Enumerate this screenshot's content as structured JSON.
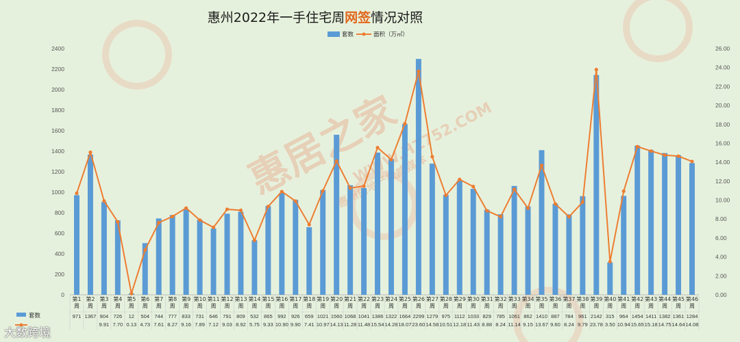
{
  "title": {
    "prefix": "惠州2022年一手住宅周",
    "highlight": "网签",
    "suffix": "情况对照"
  },
  "legend": {
    "bar_label": "套数",
    "line_label": "面积（万㎡）"
  },
  "watermark": {
    "text1": "惠居之家",
    "text2": "WWW.HZ752.COM",
    "text3": "惠州房地产权威媒体"
  },
  "footer": {
    "logo_text": "大数跨境"
  },
  "colors": {
    "bar": "#5b9bd5",
    "line": "#ed7d31",
    "background": "#e6f1dd",
    "title_highlight": "#e0671d"
  },
  "chart_data": {
    "type": "bar+line",
    "categories": [
      "第1周",
      "第2周",
      "第3周",
      "第4周",
      "第5周",
      "第6周",
      "第7周",
      "第8周",
      "第9周",
      "第10周",
      "第11周",
      "第12周",
      "第13周",
      "第14周",
      "第15周",
      "第16周",
      "第17周",
      "第18周",
      "第19周",
      "第20周",
      "第21周",
      "第22周",
      "第23周",
      "第24周",
      "第25周",
      "第26周",
      "第27周",
      "第28周",
      "第29周",
      "第30周",
      "第31周",
      "第32周",
      "第33周",
      "第34周",
      "第35周",
      "第36周",
      "第37周",
      "第38周",
      "第39周",
      "第40周",
      "第41周",
      "第42周",
      "第43周",
      "第44周",
      "第45周",
      "第46周"
    ],
    "series": [
      {
        "name": "套数",
        "type": "bar",
        "axis": "left",
        "values": [
          971,
          1367,
          904,
          726,
          12,
          504,
          744,
          777,
          833,
          731,
          646,
          791,
          809,
          532,
          865,
          992,
          926,
          659,
          1021,
          1560,
          1068,
          1041,
          1386,
          1322,
          1664,
          2299,
          1279,
          975,
          1112,
          1033,
          829,
          785,
          1061,
          862,
          1410,
          887,
          784,
          961,
          2142,
          315,
          964,
          1454,
          1411,
          1382,
          1361,
          1284
        ]
      },
      {
        "name": "面积（万㎡）",
        "type": "line",
        "axis": "right",
        "values": [
          10.72,
          15.05,
          9.91,
          7.7,
          0.13,
          4.73,
          7.61,
          8.27,
          9.16,
          7.89,
          7.12,
          9.03,
          8.92,
          5.75,
          9.33,
          10.9,
          9.9,
          7.41,
          10.97,
          14.13,
          11.28,
          11.48,
          15.54,
          14.28,
          18.07,
          23.6,
          14.58,
          10.51,
          12.18,
          11.43,
          8.88,
          8.24,
          11.14,
          9.15,
          13.67,
          9.6,
          8.24,
          9.79,
          23.78,
          3.5,
          10.94,
          15.65,
          15.18,
          14.75,
          14.64,
          14.08
        ]
      }
    ],
    "table_values": {
      "bar": [
        "971",
        "1367",
        "904",
        "726",
        "12",
        "504",
        "744",
        "777",
        "833",
        "731",
        "646",
        "791",
        "809",
        "532",
        "865",
        "992",
        "926",
        "659",
        "1021",
        "1560",
        "1068",
        "1041",
        "1386",
        "1322",
        "1664",
        "2299",
        "1279",
        "975",
        "1112",
        "1033",
        "829",
        "785",
        "1061",
        "862",
        "1410",
        "887",
        "784",
        "961",
        "2142",
        "315",
        "964",
        "1454",
        "1411",
        "1382",
        "1361",
        "1284"
      ],
      "line": [
        "",
        "",
        "9.91",
        "7.70",
        "0.13",
        "4.73",
        "7.61",
        "8.27",
        "9.16",
        "7.89",
        "7.12",
        "9.03",
        "8.92",
        "5.75",
        "9.33",
        "10.90",
        "9.90",
        "7.41",
        "10.97",
        "14.13",
        "11.28",
        "11.48",
        "15.54",
        "14.28",
        "18.07",
        "23.60",
        "14.58",
        "10.51",
        "12.18",
        "11.43",
        "8.88",
        "8.24",
        "11.14",
        "9.15",
        "13.67",
        "9.60",
        "8.24",
        "9.79",
        "23.78",
        "3.50",
        "10.94",
        "15.65",
        "15.18",
        "14.75",
        "14.64",
        "14.08"
      ]
    },
    "y_left": {
      "min": 0,
      "max": 2400,
      "step": 200
    },
    "y_right": {
      "min": 0,
      "max": 26,
      "step": 2,
      "format": "0.00"
    },
    "legend_position": "top-center",
    "grid": false
  }
}
